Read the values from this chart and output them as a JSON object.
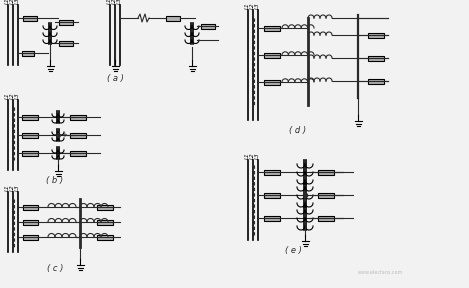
{
  "bg_color": "#f2f2f2",
  "line_color": "#2a2a2a",
  "fig_width": 4.69,
  "fig_height": 2.88,
  "dpi": 100,
  "labels": {
    "a": "( a )",
    "b": "( b )",
    "c": "( c )",
    "d": "( d )",
    "e": "( e )"
  }
}
